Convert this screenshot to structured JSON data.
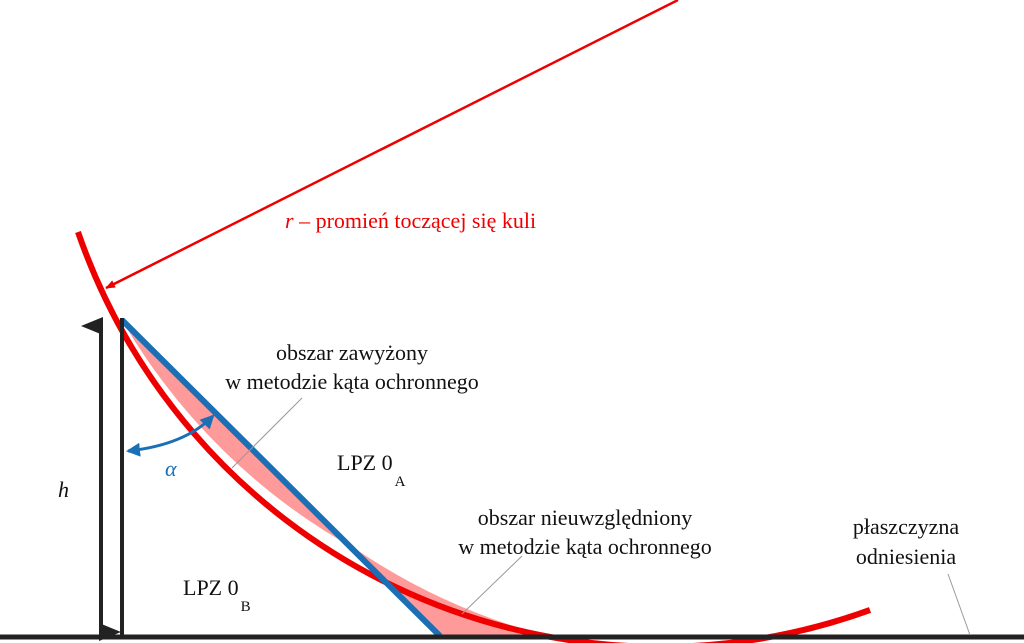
{
  "radius_label": {
    "symbol": "r",
    "text": "– promień toczącej się kuli"
  },
  "overestimated_area": {
    "line1": "obszar zawyżony",
    "line2": "w metodzie kąta ochronnego"
  },
  "zone_a": {
    "text": "LPZ 0",
    "subscript": "A"
  },
  "neglected_area": {
    "line1": "obszar nieuwzględniony",
    "line2": "w metodzie kąta ochronnego"
  },
  "reference_plane": {
    "line1": "płaszczyzna",
    "line2": "odniesienia"
  },
  "height_symbol": "h",
  "angle_symbol": "α",
  "zone_b": {
    "text": "LPZ 0",
    "subscript": "B"
  }
}
